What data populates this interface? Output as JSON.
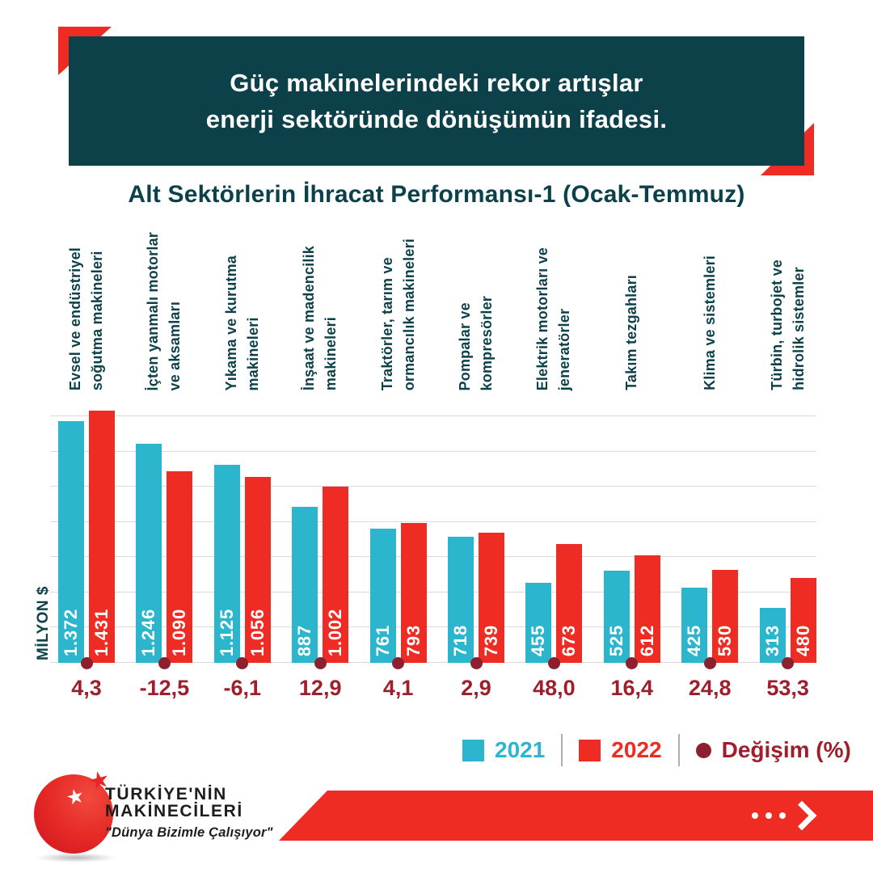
{
  "header": {
    "lines": [
      "Güç makinelerindeki rekor artışlar",
      "enerji sektöründe dönüşümün ifadesi."
    ]
  },
  "title": "Alt Sektörlerin İhracat Performansı-1 (Ocak-Temmuz)",
  "chart_data": {
    "type": "bar",
    "title": "Alt Sektörlerin İhracat Performansı-1 (Ocak-Temmuz)",
    "ylabel": "MİLYON $",
    "ylim": [
      0,
      1400
    ],
    "grid_step": 200,
    "grid": true,
    "legend_position": "bottom-right",
    "categories": [
      [
        "Evsel ve endüstriyel",
        "soğutma makineleri"
      ],
      [
        "İçten yanmalı motorlar",
        "ve aksamları"
      ],
      [
        "Yıkama ve kurutma",
        "makineleri"
      ],
      [
        "İnşaat ve madencilik",
        "makineleri"
      ],
      [
        "Traktörler, tarım ve",
        "ormancılık makineleri"
      ],
      [
        "Pompalar ve",
        "kompresörler"
      ],
      [
        "Elektrik motorları ve",
        "jeneratörler"
      ],
      [
        "Takım tezgahları"
      ],
      [
        "Klima ve sistemleri"
      ],
      [
        "Türbin, turbojet ve",
        "hidrolik sistemler"
      ]
    ],
    "series": [
      {
        "name": "2021",
        "color": "#2bb6ce",
        "values": [
          1372,
          1246,
          1125,
          887,
          761,
          718,
          455,
          525,
          425,
          313
        ],
        "value_labels": [
          "1.372",
          "1.246",
          "1.125",
          "887",
          "761",
          "718",
          "455",
          "525",
          "425",
          "313"
        ]
      },
      {
        "name": "2022",
        "color": "#ee2c23",
        "values": [
          1431,
          1090,
          1056,
          1002,
          793,
          739,
          673,
          612,
          530,
          480
        ],
        "value_labels": [
          "1.431",
          "1.090",
          "1.056",
          "1.002",
          "793",
          "739",
          "673",
          "612",
          "530",
          "480"
        ]
      }
    ],
    "change_series": {
      "name": "Değişim (%)",
      "marker_color": "#8c2031",
      "text_color": "#9e1f2b",
      "values": [
        "4,3",
        "-12,5",
        "-6,1",
        "12,9",
        "4,1",
        "2,9",
        "48,0",
        "16,4",
        "24,8",
        "53,3"
      ]
    }
  },
  "legend": {
    "items": [
      {
        "label": "2021",
        "shape": "square",
        "color": "#2bb6ce",
        "text_color": "#2bb6ce"
      },
      {
        "label": "2022",
        "shape": "square",
        "color": "#ee2c23",
        "text_color": "#ee2c23"
      },
      {
        "label": "Değişim (%)",
        "shape": "circle",
        "color": "#8c2031",
        "text_color": "#9e1f2b"
      }
    ]
  },
  "logo": {
    "name_line1": "TÜRKİYE'NİN",
    "name_line2": "MAKİNECİLERİ",
    "slogan": "\"Dünya Bizimle Çalışıyor\"",
    "star_icon": "★"
  },
  "colors": {
    "header_bg": "#0d4149",
    "accent_red": "#ee2c23",
    "teal_text": "#0d4149",
    "gridline": "#d9d9d9"
  }
}
